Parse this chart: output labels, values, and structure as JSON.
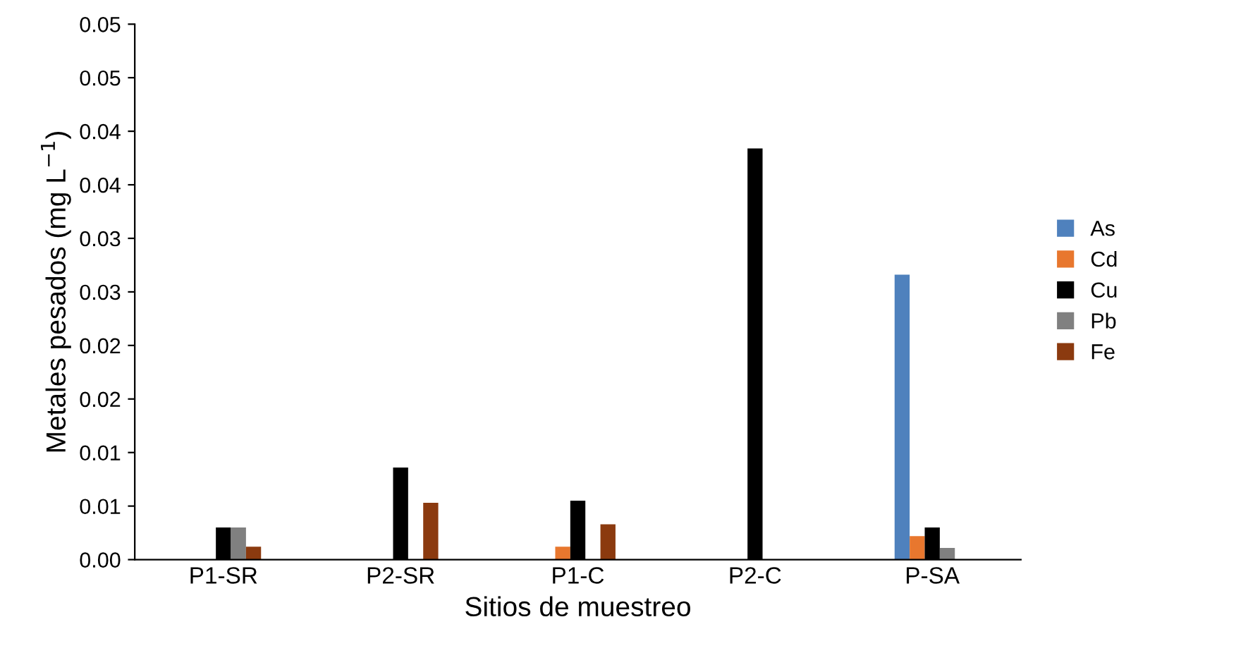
{
  "chart_data": {
    "type": "bar",
    "xlabel": "Sitios de muestreo",
    "ylabel": "Metales pesados (mg L$^{−1}$)",
    "categories": [
      "P1-SR",
      "P2-SR",
      "P1-C",
      "P2-C",
      "P-SA"
    ],
    "series": [
      {
        "name": "As",
        "color": "#4f81bd",
        "values": [
          null,
          null,
          null,
          null,
          0.0266
        ]
      },
      {
        "name": "Cd",
        "color": "#e8772e",
        "values": [
          null,
          null,
          0.0012,
          null,
          0.0022
        ]
      },
      {
        "name": "Cu",
        "color": "#000000",
        "values": [
          0.003,
          0.0086,
          0.0055,
          0.0384,
          0.003
        ]
      },
      {
        "name": "Pb",
        "color": "#808080",
        "values": [
          0.003,
          null,
          null,
          null,
          0.0011
        ]
      },
      {
        "name": "Fe",
        "color": "#8b3a0f",
        "values": [
          0.0012,
          0.0053,
          0.0033,
          null,
          null
        ]
      }
    ],
    "ylim": [
      0,
      0.05
    ],
    "yticks": [
      "0.00",
      {
        "value": 0.005,
        "label": "0.01"
      },
      {
        "value": 0.01,
        "label": "0.01"
      },
      {
        "value": 0.015,
        "label": "0.02"
      },
      {
        "value": 0.02,
        "label": "0.02"
      },
      {
        "value": 0.025,
        "label": "0.03"
      },
      {
        "value": 0.03,
        "label": "0.03"
      },
      {
        "value": 0.035,
        "label": "0.04"
      },
      {
        "value": 0.04,
        "label": "0.04"
      },
      {
        "value": 0.045,
        "label": "0.05"
      },
      {
        "value": 0.05,
        "label": "0.05"
      }
    ],
    "grid": false,
    "legend": "right"
  }
}
